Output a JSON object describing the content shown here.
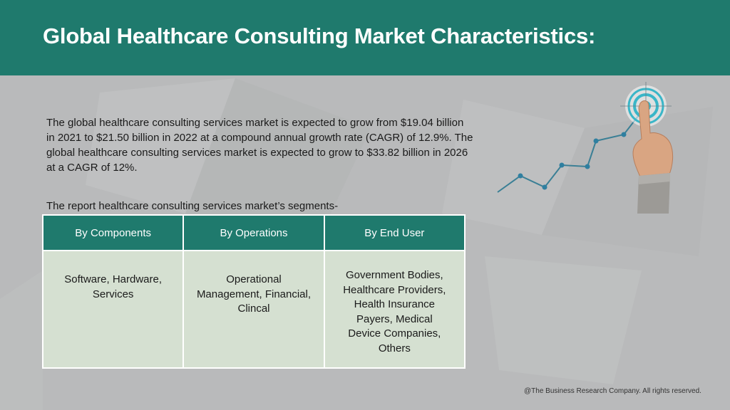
{
  "header": {
    "title": "Global Healthcare Consulting Market Characteristics:"
  },
  "intro": {
    "text": "The global healthcare consulting services market is expected to grow from $19.04 billion in 2021 to $21.50 billion in 2022 at a compound annual growth rate (CAGR) of 12.9%. The global healthcare consulting services market is expected to grow to $33.82 billion in 2026 at a CAGR of 12%."
  },
  "segments": {
    "heading": "The report healthcare consulting services market’s segments-",
    "columns": [
      "By  Components",
      "By Operations",
      "By End User"
    ],
    "cells": [
      [
        "Software, Hardware,",
        "Services"
      ],
      [
        "Operational",
        "Management, Financial,",
        "Clincal"
      ],
      [
        "Government Bodies,",
        "Healthcare Providers,",
        "Health Insurance",
        "Payers, Medical",
        "Device Companies,",
        "Others"
      ]
    ]
  },
  "footer": {
    "copyright": "@The Business Research Company. All rights reserved."
  },
  "colors": {
    "header_bg": "#1f7a6d",
    "table_header_bg": "#1f7a6d",
    "table_cell_bg": "#d5e0d1",
    "page_bg": "#b9babb",
    "line_accent": "#3a7f95"
  },
  "icons": {
    "hero": "growth-chart-target-hand-icon"
  }
}
